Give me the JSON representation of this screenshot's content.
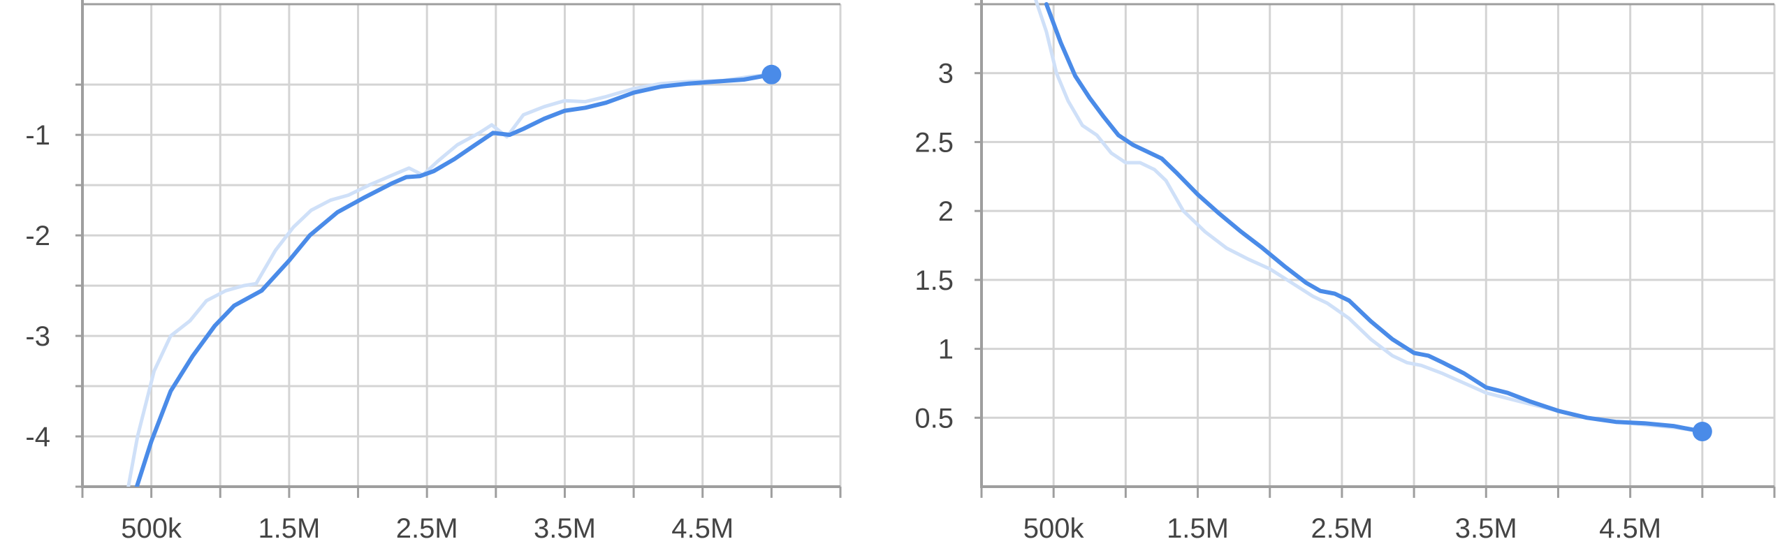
{
  "colors": {
    "line": "#4a8be8",
    "raw_line": "#cfe0f8",
    "grid": "#d4d4d4",
    "axis": "#9e9e9e",
    "text": "#444444"
  },
  "chart_data": [
    {
      "type": "line",
      "title": "",
      "xlabel": "",
      "ylabel": "",
      "grid": true,
      "xlim": [
        0,
        5500000
      ],
      "ylim": [
        -4.5,
        0.3
      ],
      "x_ticks": [
        0,
        500000,
        1000000,
        1500000,
        2000000,
        2500000,
        3000000,
        3500000,
        4000000,
        4500000,
        5000000,
        5500000
      ],
      "x_tick_labels": [
        {
          "value": 500000,
          "label": "500k"
        },
        {
          "value": 1500000,
          "label": "1.5M"
        },
        {
          "value": 2500000,
          "label": "2.5M"
        },
        {
          "value": 3500000,
          "label": "3.5M"
        },
        {
          "value": 4500000,
          "label": "4.5M"
        }
      ],
      "y_gridlines": [
        -4.5,
        -4,
        -3.5,
        -3,
        -2.5,
        -2,
        -1.5,
        -1,
        -0.5
      ],
      "y_tick_labels": [
        {
          "value": -1,
          "label": "-1"
        },
        {
          "value": -2,
          "label": "-2"
        },
        {
          "value": -3,
          "label": "-3"
        },
        {
          "value": -4,
          "label": "-4"
        }
      ],
      "series": [
        {
          "role": "raw",
          "x": [
            320000,
            400000,
            520000,
            640000,
            780000,
            900000,
            1040000,
            1170000,
            1260000,
            1400000,
            1530000,
            1660000,
            1800000,
            1930000,
            2080000,
            2250000,
            2370000,
            2470000,
            2580000,
            2720000,
            2880000,
            2970000,
            3080000,
            3200000,
            3350000,
            3500000,
            3650000,
            3800000,
            4000000,
            4200000,
            4400000,
            4650000,
            4850000,
            5000000
          ],
          "y": [
            -4.6,
            -4.0,
            -3.35,
            -3.0,
            -2.85,
            -2.65,
            -2.55,
            -2.5,
            -2.48,
            -2.15,
            -1.92,
            -1.75,
            -1.65,
            -1.6,
            -1.5,
            -1.4,
            -1.33,
            -1.4,
            -1.26,
            -1.1,
            -0.98,
            -0.9,
            -1.02,
            -0.8,
            -0.72,
            -0.66,
            -0.67,
            -0.62,
            -0.54,
            -0.49,
            -0.47,
            -0.46,
            -0.42,
            -0.4
          ]
        },
        {
          "role": "smoothed",
          "x": [
            390000,
            500000,
            640000,
            800000,
            960000,
            1100000,
            1300000,
            1500000,
            1650000,
            1850000,
            2050000,
            2250000,
            2350000,
            2450000,
            2550000,
            2700000,
            2850000,
            2980000,
            3100000,
            3200000,
            3350000,
            3500000,
            3650000,
            3800000,
            4000000,
            4200000,
            4400000,
            4600000,
            4800000,
            5000000
          ],
          "y": [
            -4.52,
            -4.05,
            -3.55,
            -3.2,
            -2.9,
            -2.7,
            -2.55,
            -2.25,
            -2.0,
            -1.77,
            -1.62,
            -1.48,
            -1.42,
            -1.41,
            -1.36,
            -1.24,
            -1.1,
            -0.98,
            -1.0,
            -0.94,
            -0.84,
            -0.76,
            -0.73,
            -0.68,
            -0.58,
            -0.52,
            -0.49,
            -0.47,
            -0.45,
            -0.4
          ]
        }
      ],
      "end_marker": {
        "x": 5000000,
        "y": -0.4
      }
    },
    {
      "type": "line",
      "title": "",
      "xlabel": "",
      "ylabel": "",
      "grid": true,
      "xlim": [
        0,
        5500000
      ],
      "ylim": [
        0,
        3.5
      ],
      "x_ticks": [
        0,
        500000,
        1000000,
        1500000,
        2000000,
        2500000,
        3000000,
        3500000,
        4000000,
        4500000,
        5000000,
        5500000
      ],
      "x_tick_labels": [
        {
          "value": 500000,
          "label": "500k"
        },
        {
          "value": 1500000,
          "label": "1.5M"
        },
        {
          "value": 2500000,
          "label": "2.5M"
        },
        {
          "value": 3500000,
          "label": "3.5M"
        },
        {
          "value": 4500000,
          "label": "4.5M"
        }
      ],
      "y_gridlines": [
        0.5,
        1,
        1.5,
        2,
        2.5,
        3,
        3.5
      ],
      "y_tick_labels": [
        {
          "value": 0.5,
          "label": "0.5"
        },
        {
          "value": 1,
          "label": "1"
        },
        {
          "value": 1.5,
          "label": "1.5"
        },
        {
          "value": 2,
          "label": "2"
        },
        {
          "value": 2.5,
          "label": "2.5"
        },
        {
          "value": 3,
          "label": "3"
        }
      ],
      "series": [
        {
          "role": "raw",
          "x": [
            370000,
            450000,
            520000,
            600000,
            700000,
            800000,
            900000,
            1000000,
            1100000,
            1200000,
            1280000,
            1400000,
            1550000,
            1700000,
            1850000,
            2000000,
            2150000,
            2300000,
            2400000,
            2550000,
            2700000,
            2850000,
            2950000,
            3050000,
            3200000,
            3350000,
            3500000,
            3650000,
            3800000,
            4000000,
            4200000,
            4400000,
            4600000,
            4800000,
            5000000
          ],
          "y": [
            3.55,
            3.3,
            3.0,
            2.8,
            2.62,
            2.55,
            2.42,
            2.35,
            2.35,
            2.3,
            2.22,
            2.0,
            1.85,
            1.73,
            1.65,
            1.58,
            1.48,
            1.38,
            1.33,
            1.22,
            1.07,
            0.95,
            0.9,
            0.88,
            0.82,
            0.75,
            0.68,
            0.64,
            0.6,
            0.55,
            0.5,
            0.47,
            0.45,
            0.43,
            0.4
          ]
        },
        {
          "role": "smoothed",
          "x": [
            450000,
            550000,
            650000,
            750000,
            850000,
            950000,
            1050000,
            1150000,
            1250000,
            1350000,
            1500000,
            1650000,
            1800000,
            1950000,
            2100000,
            2250000,
            2350000,
            2450000,
            2550000,
            2700000,
            2850000,
            3000000,
            3100000,
            3200000,
            3350000,
            3500000,
            3650000,
            3800000,
            4000000,
            4200000,
            4400000,
            4600000,
            4800000,
            5000000
          ],
          "y": [
            3.5,
            3.22,
            2.98,
            2.82,
            2.68,
            2.55,
            2.48,
            2.43,
            2.38,
            2.28,
            2.12,
            1.98,
            1.85,
            1.73,
            1.6,
            1.48,
            1.42,
            1.4,
            1.35,
            1.2,
            1.07,
            0.97,
            0.95,
            0.9,
            0.82,
            0.72,
            0.68,
            0.62,
            0.55,
            0.5,
            0.47,
            0.46,
            0.44,
            0.4
          ]
        }
      ],
      "end_marker": {
        "x": 5000000,
        "y": 0.4
      }
    }
  ]
}
